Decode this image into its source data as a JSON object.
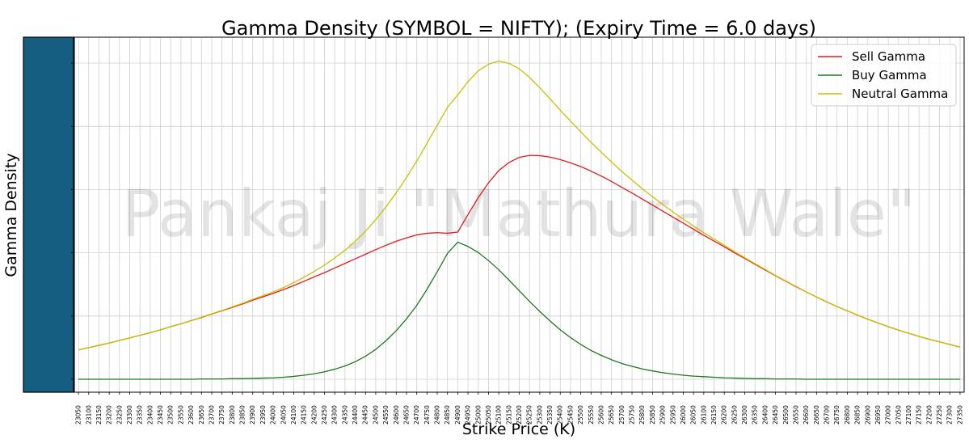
{
  "chart_data": {
    "type": "line",
    "title": "Gamma Density (SYMBOL = NIFTY); (Expiry Time = 6.0 days)",
    "xlabel": "Strike Price (K)",
    "ylabel": "Gamma Density",
    "watermark": "Pankaj Ji \"Mathura Wale\"",
    "grid": true,
    "legend_position": "top-right",
    "x_start": 23050,
    "x_step": 50,
    "x": [
      23050,
      23100,
      23150,
      23200,
      23250,
      23300,
      23350,
      23400,
      23450,
      23500,
      23550,
      23600,
      23650,
      23700,
      23750,
      23800,
      23850,
      23900,
      23950,
      24000,
      24050,
      24100,
      24150,
      24200,
      24250,
      24300,
      24350,
      24400,
      24450,
      24500,
      24550,
      24600,
      24650,
      24700,
      24750,
      24800,
      24850,
      24900,
      24950,
      25000,
      25050,
      25100,
      25150,
      25200,
      25250,
      25300,
      25350,
      25400,
      25450,
      25500,
      25550,
      25600,
      25650,
      25700,
      25750,
      25800,
      25850,
      25900,
      25950,
      26000,
      26050,
      26100,
      26150,
      26200,
      26250,
      26300,
      26350,
      26400,
      26450,
      26500,
      26550,
      26600,
      26650,
      26700,
      26750,
      26800,
      26850,
      26900,
      26950,
      27000,
      27050,
      27100,
      27150,
      27200,
      27250,
      27300,
      27350
    ],
    "series": [
      {
        "name": "Sell Gamma",
        "color": "#e41a1c",
        "values": [
          0.102,
          0.11,
          0.118,
          0.126,
          0.135,
          0.144,
          0.153,
          0.162,
          0.172,
          0.183,
          0.193,
          0.204,
          0.215,
          0.227,
          0.238,
          0.25,
          0.262,
          0.275,
          0.287,
          0.299,
          0.312,
          0.326,
          0.341,
          0.356,
          0.371,
          0.387,
          0.403,
          0.419,
          0.435,
          0.451,
          0.466,
          0.48,
          0.492,
          0.502,
          0.508,
          0.51,
          0.508,
          0.512,
          0.573,
          0.632,
          0.683,
          0.726,
          0.754,
          0.772,
          0.779,
          0.778,
          0.773,
          0.764,
          0.753,
          0.74,
          0.724,
          0.707,
          0.688,
          0.668,
          0.648,
          0.627,
          0.606,
          0.585,
          0.564,
          0.543,
          0.522,
          0.501,
          0.481,
          0.461,
          0.44,
          0.42,
          0.4,
          0.38,
          0.36,
          0.341,
          0.322,
          0.304,
          0.286,
          0.269,
          0.253,
          0.238,
          0.223,
          0.209,
          0.196,
          0.183,
          0.171,
          0.16,
          0.149,
          0.139,
          0.13,
          0.121,
          0.112
        ]
      },
      {
        "name": "Buy Gamma",
        "color": "#1b7a1b",
        "values": [
          0.0,
          0.0,
          0.0,
          0.0,
          0.0,
          0.0,
          0.0,
          0.0,
          0.0,
          0.0,
          0.0,
          0.0,
          0.001,
          0.001,
          0.001,
          0.002,
          0.002,
          0.003,
          0.004,
          0.005,
          0.007,
          0.01,
          0.014,
          0.019,
          0.026,
          0.035,
          0.046,
          0.061,
          0.08,
          0.104,
          0.134,
          0.169,
          0.21,
          0.257,
          0.313,
          0.374,
          0.438,
          0.477,
          0.462,
          0.441,
          0.413,
          0.381,
          0.345,
          0.308,
          0.271,
          0.236,
          0.203,
          0.172,
          0.145,
          0.121,
          0.1,
          0.083,
          0.068,
          0.055,
          0.045,
          0.036,
          0.029,
          0.023,
          0.018,
          0.014,
          0.011,
          0.009,
          0.007,
          0.005,
          0.004,
          0.003,
          0.002,
          0.002,
          0.001,
          0.001,
          0.001,
          0.0,
          0.0,
          0.0,
          0.0,
          0.0,
          0.0,
          0.0,
          0.0,
          0.0,
          0.0,
          0.0,
          0.0,
          0.0,
          0.0,
          0.0,
          0.0
        ]
      },
      {
        "name": "Neutral Gamma",
        "color": "#c8c000",
        "values": [
          0.102,
          0.11,
          0.118,
          0.126,
          0.135,
          0.144,
          0.153,
          0.162,
          0.172,
          0.183,
          0.193,
          0.204,
          0.216,
          0.228,
          0.239,
          0.252,
          0.264,
          0.278,
          0.291,
          0.304,
          0.319,
          0.336,
          0.355,
          0.375,
          0.397,
          0.422,
          0.449,
          0.48,
          0.515,
          0.555,
          0.6,
          0.649,
          0.702,
          0.759,
          0.821,
          0.884,
          0.946,
          0.989,
          1.035,
          1.073,
          1.096,
          1.107,
          1.099,
          1.08,
          1.05,
          1.014,
          0.976,
          0.936,
          0.898,
          0.861,
          0.824,
          0.79,
          0.756,
          0.723,
          0.693,
          0.663,
          0.635,
          0.608,
          0.582,
          0.557,
          0.533,
          0.51,
          0.488,
          0.466,
          0.444,
          0.423,
          0.402,
          0.382,
          0.361,
          0.342,
          0.323,
          0.304,
          0.286,
          0.269,
          0.253,
          0.238,
          0.223,
          0.209,
          0.196,
          0.183,
          0.171,
          0.16,
          0.149,
          0.139,
          0.13,
          0.121,
          0.112
        ]
      }
    ],
    "ylim": [
      -0.045,
      1.19
    ],
    "yticks": [
      0,
      0.22,
      0.44,
      0.66,
      0.88,
      1.1
    ],
    "show_ytick_labels": false
  },
  "sidebar_color": "#155e82"
}
